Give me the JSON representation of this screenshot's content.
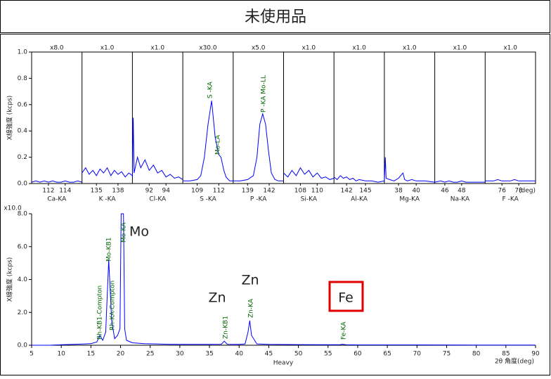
{
  "title": "未使用品",
  "chart_data": [
    {
      "type": "line",
      "y_label": "X線強度 (kcps)",
      "x_unit": "(deg)",
      "color": "#0000ff",
      "ylim": [
        0,
        1.0
      ],
      "yticks": [
        {
          "value": 0,
          "label": "0.0"
        },
        0.2,
        0.4,
        0.6,
        0.8,
        {
          "value": 1.0,
          "label": "1.0"
        }
      ],
      "annotations": [
        "S -KA",
        "Mo-LA",
        "P -KA Mo-LL"
      ],
      "panels": [
        {
          "name": "Ca-KA",
          "scale": "x8.0",
          "xlim": [
            110,
            116
          ],
          "xticks": [
            112,
            114
          ],
          "x": [
            110,
            110.5,
            111,
            111.5,
            112,
            112.5,
            113,
            113.5,
            114,
            114.5,
            115,
            115.5,
            116
          ],
          "values": [
            0.01,
            0.02,
            0.01,
            0.02,
            0.01,
            0.02,
            0.01,
            0.01,
            0.02,
            0.01,
            0.01,
            0.02,
            0.01
          ]
        },
        {
          "name": "K -KA",
          "scale": "x1.0",
          "xlim": [
            133,
            140
          ],
          "xticks": [
            135,
            138
          ],
          "x": [
            133,
            133.5,
            134,
            134.5,
            135,
            135.5,
            136,
            136.5,
            137,
            137.5,
            138,
            138.5,
            139,
            139.5,
            140
          ],
          "values": [
            0.08,
            0.12,
            0.07,
            0.1,
            0.06,
            0.11,
            0.08,
            0.12,
            0.06,
            0.1,
            0.07,
            0.09,
            0.05,
            0.08,
            0.06
          ]
        },
        {
          "name": "Cl-KA",
          "scale": "x1.0",
          "xlim": [
            90,
            96
          ],
          "xticks": [
            92,
            94
          ],
          "x": [
            90,
            90.1,
            90.2,
            90.6,
            91,
            91.5,
            92,
            92.5,
            93,
            93.5,
            94,
            94.5,
            95,
            95.5,
            96
          ],
          "values": [
            0.05,
            0.5,
            0.08,
            0.2,
            0.12,
            0.18,
            0.1,
            0.14,
            0.08,
            0.1,
            0.05,
            0.07,
            0.04,
            0.05,
            0.03
          ]
        },
        {
          "name": "S -KA",
          "scale": "x30.0",
          "xlim": [
            107,
            114
          ],
          "xticks": [
            109,
            112
          ],
          "x": [
            107,
            108,
            109,
            109.5,
            110,
            110.5,
            111,
            111.5,
            112,
            112.3,
            112.7,
            113,
            113.5,
            114
          ],
          "values": [
            0.02,
            0.02,
            0.03,
            0.06,
            0.2,
            0.45,
            0.63,
            0.35,
            0.22,
            0.2,
            0.1,
            0.05,
            0.02,
            0.02
          ]
        },
        {
          "name": "P -KA",
          "scale": "x5.0",
          "xlim": [
            137,
            144
          ],
          "xticks": [
            139,
            142
          ],
          "x": [
            137,
            138,
            139,
            139.8,
            140.3,
            140.7,
            141.1,
            141.5,
            141.9,
            142.3,
            142.8,
            143.3,
            144
          ],
          "values": [
            0.02,
            0.02,
            0.03,
            0.06,
            0.2,
            0.45,
            0.53,
            0.45,
            0.25,
            0.08,
            0.03,
            0.02,
            0.02
          ]
        },
        {
          "name": "Si-KA",
          "scale": "x1.0",
          "xlim": [
            106,
            112
          ],
          "xticks": [
            108,
            110
          ],
          "x": [
            106,
            106.5,
            107,
            107.5,
            108,
            108.5,
            109,
            109.5,
            110,
            110.5,
            111,
            111.5,
            112
          ],
          "values": [
            0.08,
            0.05,
            0.1,
            0.06,
            0.12,
            0.07,
            0.1,
            0.05,
            0.08,
            0.04,
            0.05,
            0.03,
            0.04
          ]
        },
        {
          "name": "Al-KA",
          "scale": "x1.0",
          "xlim": [
            140,
            148
          ],
          "xticks": [
            142,
            145
          ],
          "x": [
            140,
            140.5,
            141,
            141.5,
            142,
            142.5,
            143,
            143.5,
            144,
            145,
            146,
            147,
            148
          ],
          "values": [
            0.05,
            0.03,
            0.06,
            0.04,
            0.05,
            0.03,
            0.04,
            0.02,
            0.03,
            0.02,
            0.02,
            0.01,
            0.02
          ]
        },
        {
          "name": "Mg-KA",
          "scale": "x1.0",
          "xlim": [
            36.4,
            42.1
          ],
          "xticks": [
            38,
            40
          ],
          "x": [
            36.4,
            36.5,
            36.6,
            37,
            37.5,
            38,
            38.5,
            38.7,
            39,
            39.5,
            40,
            41,
            42.1
          ],
          "values": [
            0.02,
            0.2,
            0.04,
            0.03,
            0.02,
            0.04,
            0.08,
            0.03,
            0.02,
            0.03,
            0.02,
            0.02,
            0.01
          ]
        },
        {
          "name": "Na-KA",
          "scale": "x1.0",
          "xlim": [
            44.8,
            50.8
          ],
          "xticks": [
            46,
            48
          ],
          "x": [
            44.8,
            45.5,
            46,
            46.5,
            47,
            47.5,
            48,
            48.5,
            49,
            50,
            50.8
          ],
          "values": [
            0.01,
            0.02,
            0.01,
            0.02,
            0.01,
            0.01,
            0.02,
            0.01,
            0.01,
            0.01,
            0.01
          ]
        },
        {
          "name": "F -KA",
          "scale": "x1.0",
          "xlim": [
            74,
            80
          ],
          "xticks": [
            76,
            78
          ],
          "x": [
            74,
            75,
            75.5,
            76,
            77,
            77.5,
            78,
            79,
            80
          ],
          "values": [
            0.02,
            0.02,
            0.03,
            0.02,
            0.02,
            0.03,
            0.02,
            0.02,
            0.02
          ]
        }
      ]
    },
    {
      "type": "line",
      "y_label": "X線強度 (kcps)",
      "y_multiplier": "x10.0",
      "x_label": "Heavy",
      "x_label2": "2θ 角度(deg)",
      "color": "#0000ff",
      "xlim": [
        5,
        90
      ],
      "xticks": [
        5,
        10,
        15,
        20,
        25,
        30,
        35,
        40,
        45,
        50,
        55,
        60,
        65,
        70,
        75,
        80,
        85,
        90
      ],
      "ylim": [
        0,
        8.0
      ],
      "yticks": [
        {
          "value": 0,
          "label": "0.0"
        },
        {
          "value": 2,
          "label": "2.0"
        },
        {
          "value": 4,
          "label": "4.0"
        },
        {
          "value": 6,
          "label": "6.0"
        },
        {
          "value": 8,
          "label": "8.0"
        }
      ],
      "peak_labels": [
        "Rh-KB1-Compton",
        "Rh-KA-Compton",
        "Mo-KB1",
        "Mo-KA",
        "Zn-KB1",
        "Zn-KA",
        "Fe-KA"
      ],
      "element_labels": [
        "Mo",
        "Zn",
        "Zn",
        "Fe"
      ],
      "x": [
        5,
        8,
        10,
        12,
        14,
        15,
        16,
        16.5,
        17,
        17.5,
        18,
        18.5,
        19,
        19.5,
        19.9,
        20.1,
        20.5,
        20.7,
        21,
        22,
        24,
        26,
        28,
        30,
        33,
        35,
        37,
        37.5,
        38,
        40,
        41,
        41.5,
        41.8,
        42.1,
        43,
        45,
        50,
        55,
        57,
        57.4,
        58,
        60,
        70,
        80,
        90
      ],
      "values": [
        0,
        0,
        0.03,
        0.05,
        0.08,
        0.1,
        0.2,
        0.6,
        0.3,
        0.8,
        5.2,
        1.5,
        0.4,
        0.6,
        1.0,
        8.0,
        8.0,
        1.0,
        0.3,
        0.15,
        0.1,
        0.08,
        0.06,
        0.05,
        0.05,
        0.05,
        0.06,
        0.25,
        0.06,
        0.05,
        0.08,
        0.8,
        1.5,
        0.6,
        0.08,
        0.05,
        0.04,
        0.03,
        0.03,
        0.06,
        0.03,
        0.02,
        0.02,
        0.01,
        0.01
      ]
    }
  ]
}
